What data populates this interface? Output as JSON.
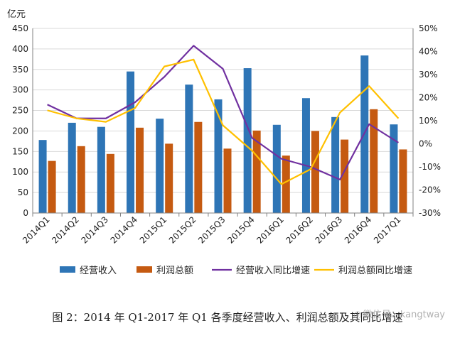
{
  "chart_data": {
    "type": "bar+line",
    "y_unit": "亿元",
    "categories": [
      "2014Q1",
      "2014Q2",
      "2014Q3",
      "2014Q4",
      "2015Q1",
      "2015Q2",
      "2015Q3",
      "2015Q4",
      "2016Q1",
      "2016Q2",
      "2016Q3",
      "2016Q4",
      "2017Q1"
    ],
    "left_axis": {
      "min": 0,
      "max": 450,
      "step": 50,
      "ticks": [
        "0",
        "50",
        "100",
        "150",
        "200",
        "250",
        "300",
        "350",
        "400",
        "450"
      ]
    },
    "right_axis": {
      "min": -30,
      "max": 50,
      "step": 10,
      "ticks": [
        "-30%",
        "-20%",
        "-10%",
        "0%",
        "10%",
        "20%",
        "30%",
        "40%",
        "50%"
      ]
    },
    "bar_series": [
      {
        "name": "经营收入",
        "color": "#2E75B6",
        "values": [
          178,
          220,
          210,
          345,
          230,
          313,
          277,
          353,
          215,
          280,
          234,
          384,
          216
        ]
      },
      {
        "name": "利润总额",
        "color": "#C55A11",
        "values": [
          127,
          163,
          144,
          208,
          169,
          222,
          157,
          201,
          140,
          200,
          179,
          253,
          155
        ]
      }
    ],
    "line_series": [
      {
        "name": "经营收入同比增速",
        "color": "#7030A0",
        "values": [
          17,
          11,
          11,
          18,
          29,
          42.5,
          32.5,
          2.5,
          -6.5,
          -10,
          -15.5,
          8.5,
          0.5
        ]
      },
      {
        "name": "利润总额同比增速",
        "color": "#FFC000",
        "values": [
          14.5,
          11,
          9.5,
          15.5,
          33.5,
          36.5,
          8,
          -3,
          -17.5,
          -11,
          13.5,
          25,
          11
        ]
      }
    ],
    "legend_position": "bottom",
    "grid": "horizontal"
  },
  "caption": "图 2：2014 年 Q1-2017 年 Q1 各季度经营收入、利润总额及其同比增速",
  "watermark": "微信号：kangtway"
}
